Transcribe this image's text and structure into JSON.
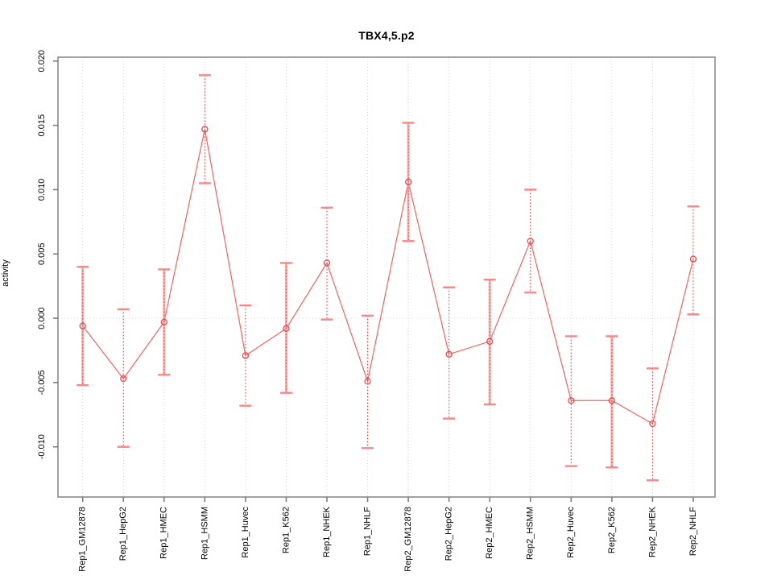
{
  "figure": {
    "background": "#ffffff",
    "title": "TBX4,5.p2"
  },
  "chart_data": {
    "type": "line",
    "title": "TBX4,5.p2",
    "xlabel": "",
    "ylabel": "activity",
    "legend": "none",
    "grid": {
      "vertical": "dotted at each category",
      "horizontal": "dotted at y=0"
    },
    "point_marker": "open-circle",
    "error_bars": true,
    "categories": [
      "Rep1_GM12878",
      "Rep1_HepG2",
      "Rep1_HMEC",
      "Rep1_HSMM",
      "Rep1_Huvec",
      "Rep1_K562",
      "Rep1_NHEK",
      "Rep1_NHLF",
      "Rep2_GM12878",
      "Rep2_HepG2",
      "Rep2_HMEC",
      "Rep2_HSMM",
      "Rep2_Huvec",
      "Rep2_K562",
      "Rep2_NHEK",
      "Rep2_NHLF"
    ],
    "series": [
      {
        "name": "activity",
        "values": [
          -0.0006,
          -0.0047,
          -0.0003,
          0.0147,
          -0.0029,
          -0.0008,
          0.0043,
          -0.0049,
          0.0106,
          -0.0028,
          -0.0018,
          0.006,
          -0.0064,
          -0.0064,
          -0.0082,
          0.0046
        ],
        "err_low": [
          -0.0052,
          -0.01,
          -0.0044,
          0.0105,
          -0.0068,
          -0.0058,
          -0.0001,
          -0.0101,
          0.006,
          -0.0078,
          -0.0067,
          0.002,
          -0.0115,
          -0.0116,
          -0.0126,
          0.0003
        ],
        "err_high": [
          0.004,
          0.0007,
          0.0038,
          0.0189,
          0.001,
          0.0043,
          0.0086,
          0.0002,
          0.0152,
          0.0024,
          0.003,
          0.01,
          -0.0014,
          -0.0014,
          -0.0039,
          0.0087
        ],
        "bar_style": [
          "thick",
          "dotted",
          "thick",
          "dotted",
          "dotted",
          "thick",
          "dotted",
          "dotted",
          "thick",
          "dotted",
          "thick",
          "dotted",
          "dotted",
          "thick",
          "dotted",
          "dotted"
        ]
      }
    ],
    "ylim": [
      -0.0139,
      0.0203
    ],
    "yticks": [
      -0.01,
      -0.005,
      0.0,
      0.005,
      0.01,
      0.015,
      0.02
    ],
    "ytick_labels": [
      "-0.010",
      "-0.005",
      "0.000",
      "0.005",
      "0.010",
      "0.015",
      "0.020"
    ],
    "colors": {
      "line": "#f46262",
      "point": "#e84a4a",
      "errorbar_dotted": "#e64444",
      "errorbar_thick": "#f8a0a0",
      "errorbar_cap": "#f58888",
      "grid": "#d9d9d9",
      "box": "#8a8a8a",
      "tick": "#7d7d7d",
      "text": "#000000"
    }
  }
}
